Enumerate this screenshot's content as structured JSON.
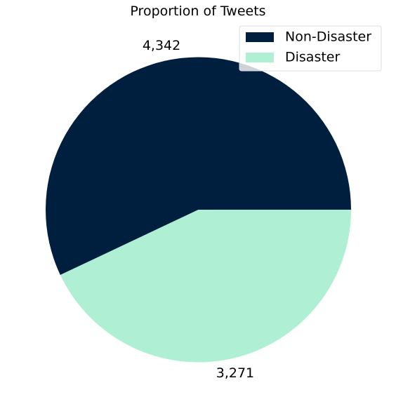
{
  "chart_data": {
    "type": "pie",
    "title": "Proportion of Tweets",
    "start_angle_deg": 0,
    "direction": "counterclockwise",
    "slices": [
      {
        "label": "Non-Disaster",
        "value": 4342,
        "display_value": "4,342",
        "color": "#001f3f"
      },
      {
        "label": "Disaster",
        "value": 3271,
        "display_value": "3,271",
        "color": "#aff0d4"
      }
    ],
    "legend": {
      "position": "top-right",
      "entries": [
        "Non-Disaster",
        "Disaster"
      ]
    }
  }
}
